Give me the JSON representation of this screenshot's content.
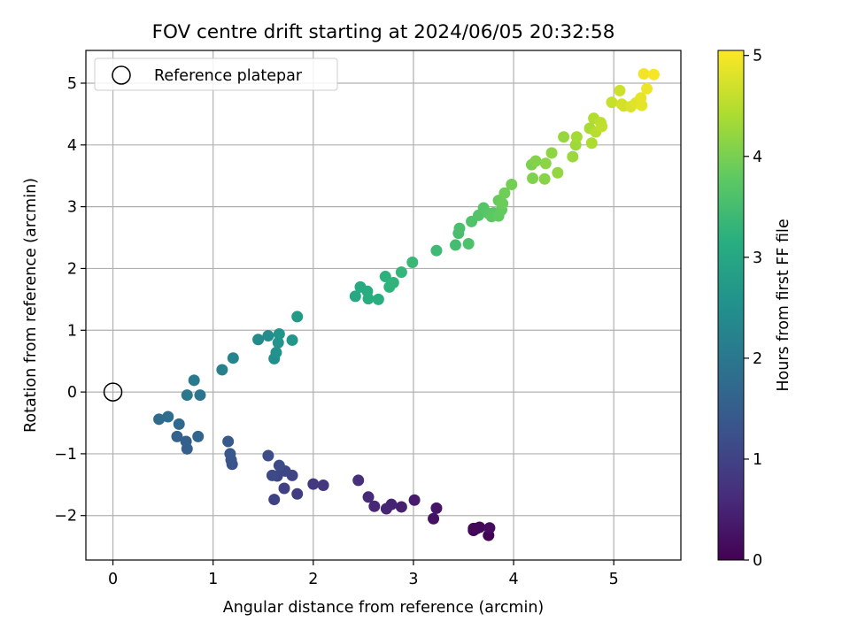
{
  "chart_data": {
    "type": "scatter",
    "title": "FOV centre drift starting at 2024/06/05 20:32:58",
    "xlabel": "Angular distance from reference (arcmin)",
    "ylabel": "Rotation from reference (arcmin)",
    "xlim": [
      -0.27,
      5.67
    ],
    "ylim": [
      -2.72,
      5.53
    ],
    "xticks": [
      0,
      1,
      2,
      3,
      4,
      5
    ],
    "yticks": [
      -2,
      -1,
      0,
      1,
      2,
      3,
      4,
      5
    ],
    "grid": true,
    "legend": {
      "position": "top-left",
      "label": "Reference platepar"
    },
    "reference_point": {
      "x": 0,
      "y": 0
    },
    "colorbar": {
      "label": "Hours from first FF file",
      "colormap": "viridis",
      "range": [
        0,
        5.05
      ],
      "ticks": [
        0,
        1,
        2,
        3,
        4,
        5
      ]
    },
    "points": [
      [
        3.75,
        -2.32,
        0.02
      ],
      [
        3.6,
        -2.24,
        0.05
      ],
      [
        3.63,
        -2.21,
        0.08
      ],
      [
        3.66,
        -2.19,
        0.1
      ],
      [
        3.6,
        -2.21,
        0.12
      ],
      [
        3.76,
        -2.2,
        0.14
      ],
      [
        3.2,
        -2.05,
        0.25
      ],
      [
        3.23,
        -1.88,
        0.3
      ],
      [
        3.01,
        -1.75,
        0.38
      ],
      [
        2.88,
        -1.86,
        0.43
      ],
      [
        2.78,
        -1.82,
        0.48
      ],
      [
        2.73,
        -1.89,
        0.52
      ],
      [
        2.61,
        -1.85,
        0.56
      ],
      [
        2.55,
        -1.7,
        0.6
      ],
      [
        2.45,
        -1.43,
        0.68
      ],
      [
        2.1,
        -1.51,
        0.8
      ],
      [
        2.0,
        -1.49,
        0.84
      ],
      [
        1.84,
        -1.65,
        0.9
      ],
      [
        1.71,
        -1.56,
        0.95
      ],
      [
        1.61,
        -1.74,
        0.98
      ],
      [
        1.79,
        -1.35,
        1.02
      ],
      [
        1.72,
        -1.28,
        1.05
      ],
      [
        1.64,
        -1.36,
        1.08
      ],
      [
        1.59,
        -1.35,
        1.11
      ],
      [
        1.66,
        -1.19,
        1.14
      ],
      [
        1.55,
        -1.03,
        1.18
      ],
      [
        1.19,
        -1.17,
        1.28
      ],
      [
        1.18,
        -1.1,
        1.32
      ],
      [
        1.17,
        -1.0,
        1.36
      ],
      [
        1.15,
        -0.8,
        1.4
      ],
      [
        0.74,
        -0.92,
        1.52
      ],
      [
        0.73,
        -0.8,
        1.56
      ],
      [
        0.64,
        -0.72,
        1.6
      ],
      [
        0.85,
        -0.72,
        1.64
      ],
      [
        0.66,
        -0.52,
        1.7
      ],
      [
        0.46,
        -0.44,
        1.76
      ],
      [
        0.55,
        -0.4,
        1.8
      ],
      [
        0.87,
        -0.05,
        1.96
      ],
      [
        0.74,
        -0.05,
        2.0
      ],
      [
        0.81,
        0.19,
        2.06
      ],
      [
        1.09,
        0.36,
        2.2
      ],
      [
        1.2,
        0.55,
        2.26
      ],
      [
        1.45,
        0.85,
        2.38
      ],
      [
        1.55,
        0.91,
        2.44
      ],
      [
        1.61,
        0.54,
        2.5
      ],
      [
        1.63,
        0.64,
        2.54
      ],
      [
        1.65,
        0.8,
        2.58
      ],
      [
        1.66,
        0.94,
        2.62
      ],
      [
        1.79,
        0.84,
        2.66
      ],
      [
        1.84,
        1.22,
        2.72
      ],
      [
        2.42,
        1.55,
        3.02
      ],
      [
        2.47,
        1.7,
        3.06
      ],
      [
        2.54,
        1.63,
        3.1
      ],
      [
        2.55,
        1.51,
        3.13
      ],
      [
        2.65,
        1.5,
        3.17
      ],
      [
        2.72,
        1.87,
        3.2
      ],
      [
        2.76,
        1.7,
        3.24
      ],
      [
        2.8,
        1.77,
        3.27
      ],
      [
        2.88,
        1.94,
        3.31
      ],
      [
        2.99,
        2.1,
        3.36
      ],
      [
        3.23,
        2.29,
        3.44
      ],
      [
        3.42,
        2.38,
        3.5
      ],
      [
        3.45,
        2.57,
        3.53
      ],
      [
        3.46,
        2.65,
        3.56
      ],
      [
        3.55,
        2.4,
        3.59
      ],
      [
        3.58,
        2.76,
        3.62
      ],
      [
        3.65,
        2.86,
        3.65
      ],
      [
        3.7,
        2.98,
        3.68
      ],
      [
        3.75,
        2.89,
        3.71
      ],
      [
        3.8,
        2.9,
        3.74
      ],
      [
        3.78,
        2.84,
        3.77
      ],
      [
        3.85,
        2.85,
        3.8
      ],
      [
        3.88,
        2.95,
        3.83
      ],
      [
        3.85,
        3.1,
        3.86
      ],
      [
        3.89,
        3.05,
        3.89
      ],
      [
        3.91,
        3.22,
        3.92
      ],
      [
        3.98,
        3.36,
        3.96
      ],
      [
        4.18,
        3.68,
        4.03
      ],
      [
        4.19,
        3.46,
        4.06
      ],
      [
        4.22,
        3.74,
        4.09
      ],
      [
        4.31,
        3.45,
        4.12
      ],
      [
        4.32,
        3.7,
        4.15
      ],
      [
        4.38,
        3.87,
        4.18
      ],
      [
        4.44,
        3.55,
        4.21
      ],
      [
        4.5,
        4.13,
        4.24
      ],
      [
        4.59,
        3.81,
        4.28
      ],
      [
        4.62,
        4.0,
        4.31
      ],
      [
        4.63,
        4.13,
        4.34
      ],
      [
        4.76,
        4.27,
        4.38
      ],
      [
        4.78,
        4.03,
        4.42
      ],
      [
        4.8,
        4.43,
        4.46
      ],
      [
        4.82,
        4.21,
        4.5
      ],
      [
        4.87,
        4.36,
        4.54
      ],
      [
        4.88,
        4.3,
        4.57
      ],
      [
        4.98,
        4.69,
        4.62
      ],
      [
        5.06,
        4.88,
        4.66
      ],
      [
        5.1,
        4.63,
        4.7
      ],
      [
        5.08,
        4.66,
        4.73
      ],
      [
        5.17,
        4.62,
        4.77
      ],
      [
        5.22,
        4.68,
        4.81
      ],
      [
        5.28,
        4.64,
        4.85
      ],
      [
        5.27,
        4.76,
        4.88
      ],
      [
        5.33,
        4.91,
        4.92
      ],
      [
        5.3,
        5.15,
        4.96
      ],
      [
        5.4,
        5.14,
        5.0
      ]
    ]
  }
}
